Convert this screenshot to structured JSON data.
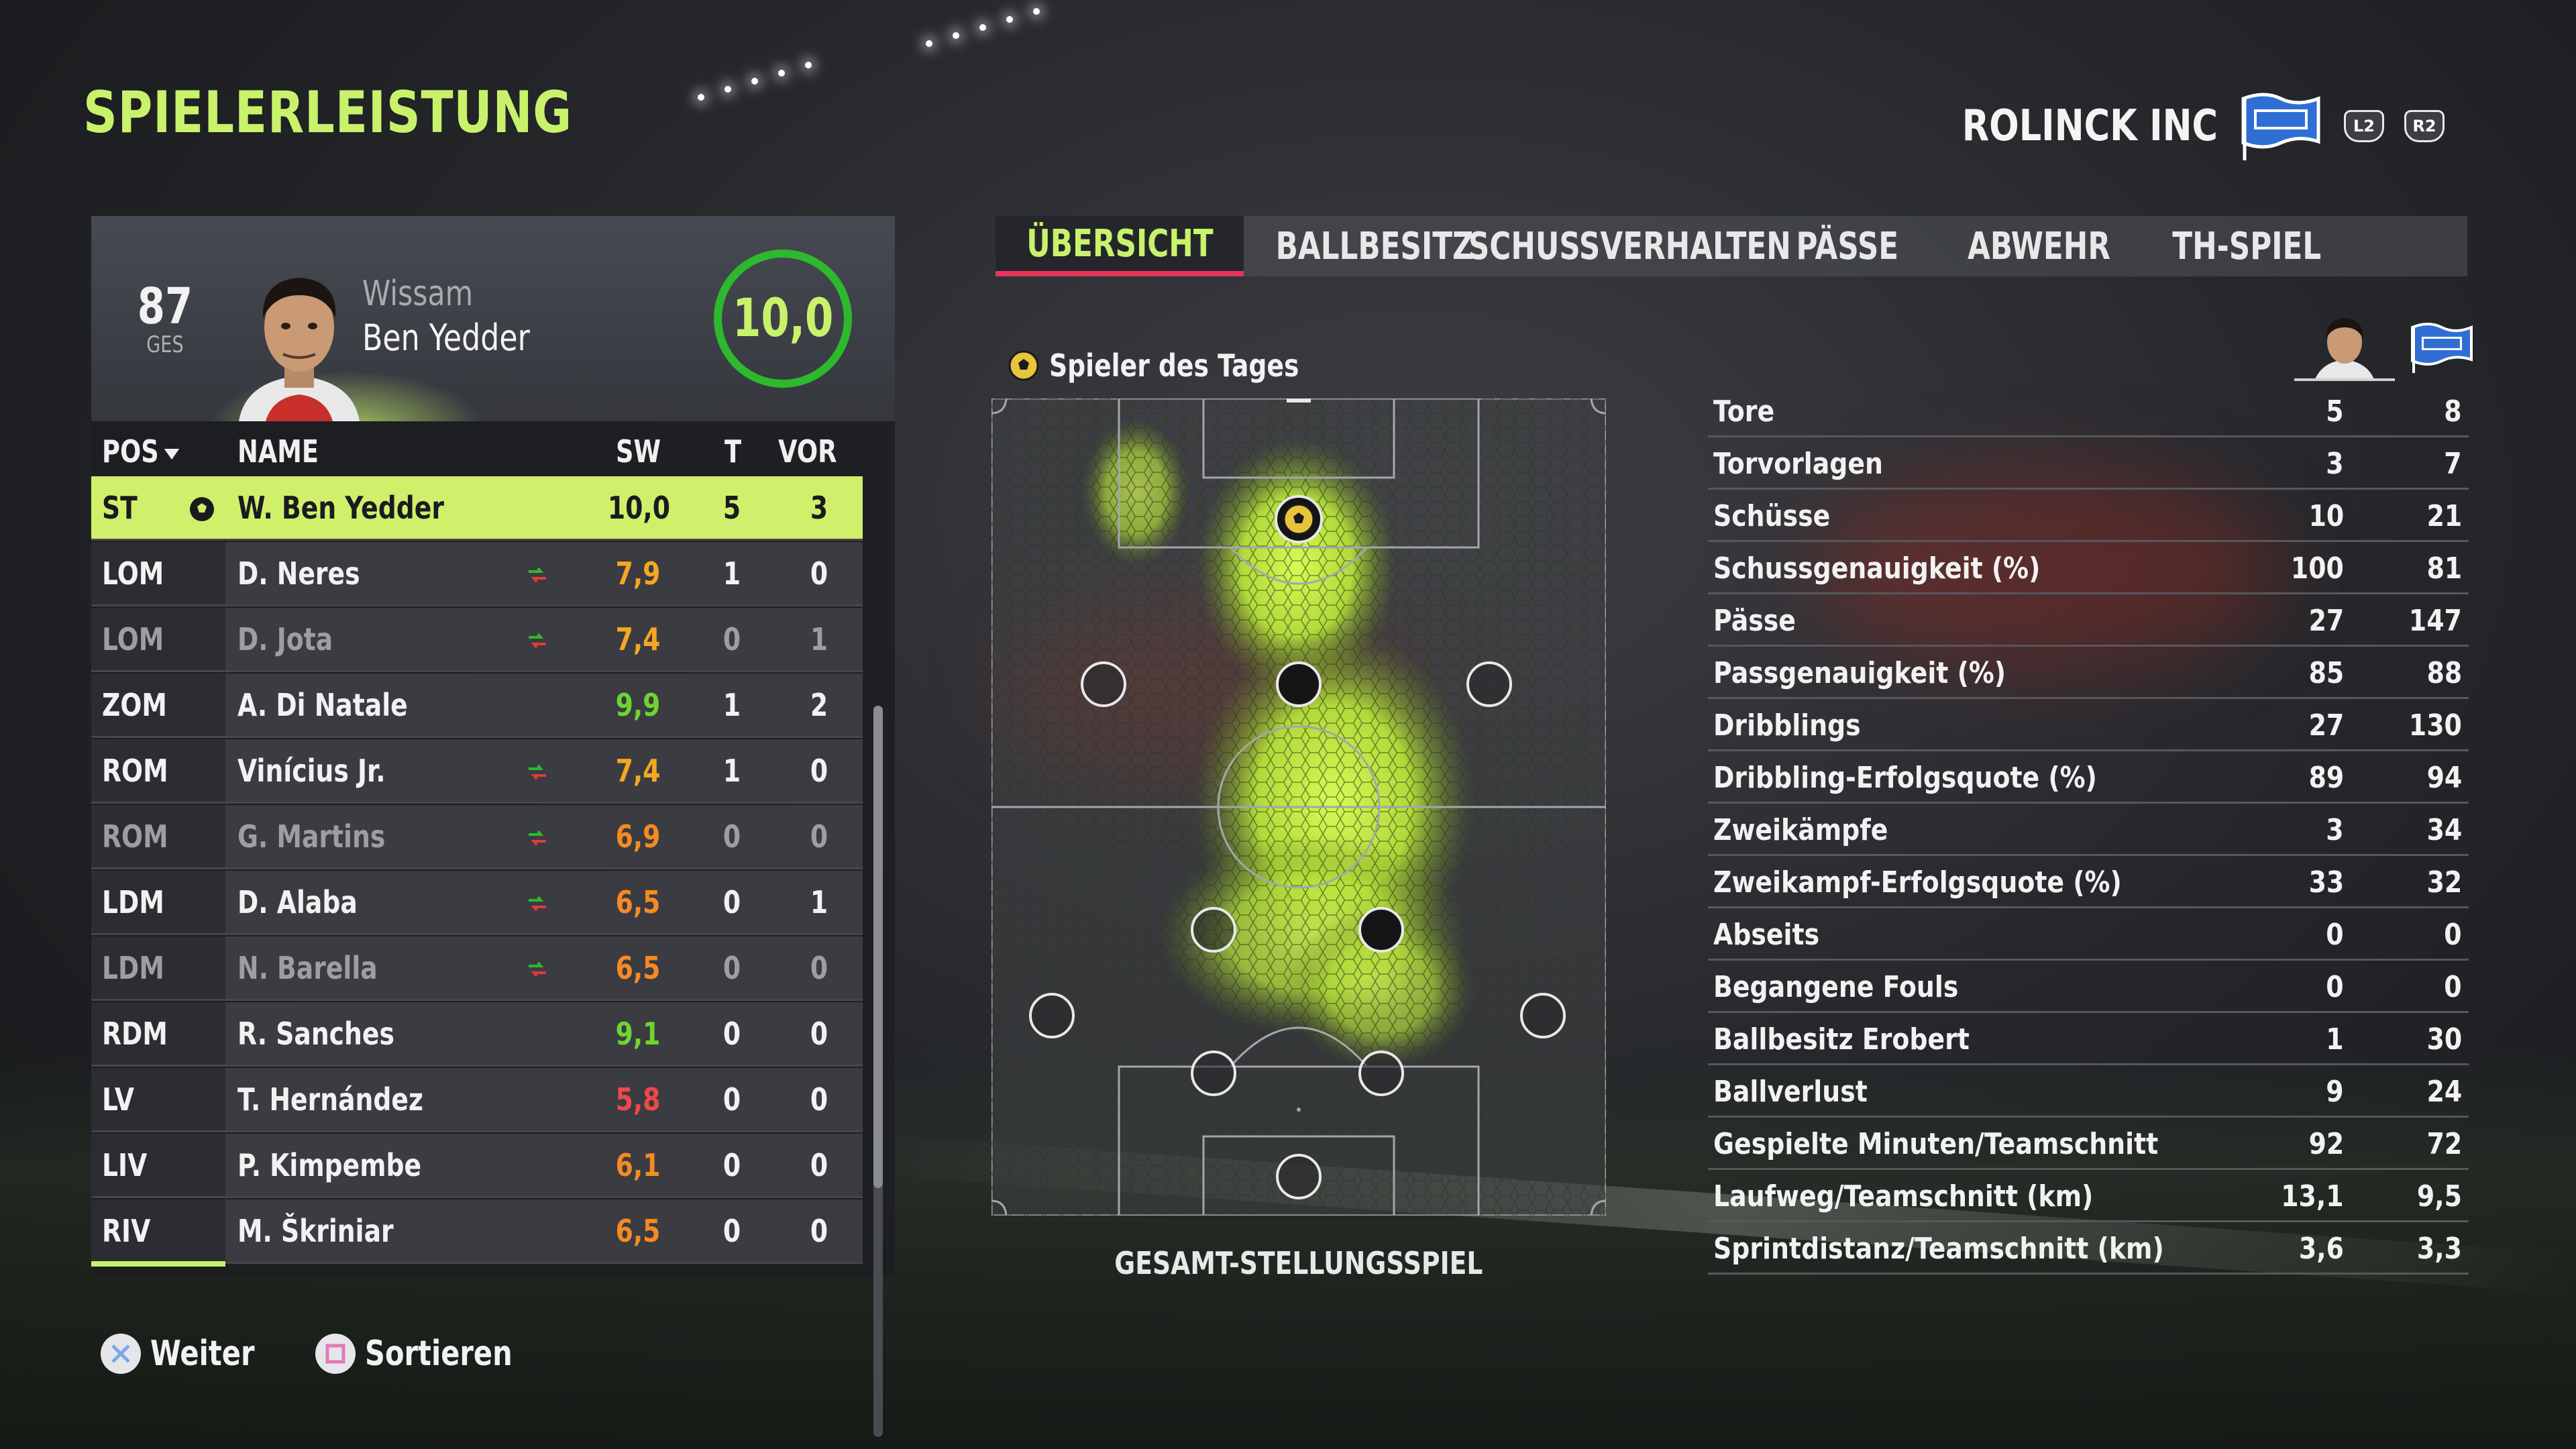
{
  "page": {
    "title": "SPIELERLEISTUNG"
  },
  "team": {
    "name": "ROLINCK INC",
    "prev_button": "L2",
    "next_button": "R2"
  },
  "player": {
    "overall": "87",
    "overall_label": "GES",
    "first_name": "Wissam",
    "last_name": "Ben Yedder",
    "match_rating": "10,0"
  },
  "list": {
    "headers": {
      "pos": "POS",
      "name": "NAME",
      "sw": "SW",
      "t": "T",
      "vor": "VOR"
    },
    "rows": [
      {
        "pos": "ST",
        "name": "W. Ben Yedder",
        "sw": "10,0",
        "t": "5",
        "vor": "3",
        "sw_color": "#1a1b1e",
        "active": true,
        "sub": false,
        "swap": false,
        "motm": true
      },
      {
        "pos": "LOM",
        "name": "D. Neres",
        "sw": "7,9",
        "t": "1",
        "vor": "0",
        "sw_color": "#f5a623",
        "active": false,
        "sub": false,
        "swap": true,
        "motm": false
      },
      {
        "pos": "LOM",
        "name": "D. Jota",
        "sw": "7,4",
        "t": "0",
        "vor": "1",
        "sw_color": "#f5a623",
        "active": false,
        "sub": true,
        "swap": true,
        "motm": false
      },
      {
        "pos": "ZOM",
        "name": "A. Di Natale",
        "sw": "9,9",
        "t": "1",
        "vor": "2",
        "sw_color": "#6fd430",
        "active": false,
        "sub": false,
        "swap": false,
        "motm": false
      },
      {
        "pos": "ROM",
        "name": "Vinícius Jr.",
        "sw": "7,4",
        "t": "1",
        "vor": "0",
        "sw_color": "#f5a623",
        "active": false,
        "sub": false,
        "swap": true,
        "motm": false
      },
      {
        "pos": "ROM",
        "name": "G. Martins",
        "sw": "6,9",
        "t": "0",
        "vor": "0",
        "sw_color": "#f58a23",
        "active": false,
        "sub": true,
        "swap": true,
        "motm": false
      },
      {
        "pos": "LDM",
        "name": "D. Alaba",
        "sw": "6,5",
        "t": "0",
        "vor": "1",
        "sw_color": "#f58a23",
        "active": false,
        "sub": false,
        "swap": true,
        "motm": false
      },
      {
        "pos": "LDM",
        "name": "N. Barella",
        "sw": "6,5",
        "t": "0",
        "vor": "0",
        "sw_color": "#f58a23",
        "active": false,
        "sub": true,
        "swap": true,
        "motm": false
      },
      {
        "pos": "RDM",
        "name": "R. Sanches",
        "sw": "9,1",
        "t": "0",
        "vor": "0",
        "sw_color": "#6fd430",
        "active": false,
        "sub": false,
        "swap": false,
        "motm": false
      },
      {
        "pos": "LV",
        "name": "T. Hernández",
        "sw": "5,8",
        "t": "0",
        "vor": "0",
        "sw_color": "#f04848",
        "active": false,
        "sub": false,
        "swap": false,
        "motm": false
      },
      {
        "pos": "LIV",
        "name": "P. Kimpembe",
        "sw": "6,1",
        "t": "0",
        "vor": "0",
        "sw_color": "#f58a23",
        "active": false,
        "sub": false,
        "swap": false,
        "motm": false
      },
      {
        "pos": "RIV",
        "name": "M. Škriniar",
        "sw": "6,5",
        "t": "0",
        "vor": "0",
        "sw_color": "#f58a23",
        "active": false,
        "sub": false,
        "swap": false,
        "motm": false
      }
    ],
    "scroll_fraction": 0.66
  },
  "tabs": [
    {
      "label": "ÜBERSICHT",
      "active": true
    },
    {
      "label": "BALLBESITZ",
      "active": false
    },
    {
      "label": "SCHUSSVERHALTEN",
      "active": false
    },
    {
      "label": "PÄSSE",
      "active": false
    },
    {
      "label": "ABWEHR",
      "active": false
    },
    {
      "label": "TH-SPIEL",
      "active": false
    }
  ],
  "pitch": {
    "motm_label": "Spieler des Tages",
    "caption": "GESAMT-STELLUNGSSPIEL"
  },
  "stats": [
    {
      "label": "Tore",
      "player": "5",
      "team": "8"
    },
    {
      "label": "Torvorlagen",
      "player": "3",
      "team": "7"
    },
    {
      "label": "Schüsse",
      "player": "10",
      "team": "21"
    },
    {
      "label": "Schussgenauigkeit (%)",
      "player": "100",
      "team": "81"
    },
    {
      "label": "Pässe",
      "player": "27",
      "team": "147"
    },
    {
      "label": "Passgenauigkeit (%)",
      "player": "85",
      "team": "88"
    },
    {
      "label": "Dribblings",
      "player": "27",
      "team": "130"
    },
    {
      "label": "Dribbling-Erfolgsquote (%)",
      "player": "89",
      "team": "94"
    },
    {
      "label": "Zweikämpfe",
      "player": "3",
      "team": "34"
    },
    {
      "label": "Zweikampf-Erfolgsquote (%)",
      "player": "33",
      "team": "32"
    },
    {
      "label": "Abseits",
      "player": "0",
      "team": "0"
    },
    {
      "label": "Begangene Fouls",
      "player": "0",
      "team": "0"
    },
    {
      "label": "Ballbesitz Erobert",
      "player": "1",
      "team": "30"
    },
    {
      "label": "Ballverlust",
      "player": "9",
      "team": "24"
    },
    {
      "label": "Gespielte Minuten/Teamschnitt",
      "player": "92",
      "team": "72"
    },
    {
      "label": "Laufweg/Teamschnitt (km)",
      "player": "13,1",
      "team": "9,5"
    },
    {
      "label": "Sprintdistanz/Teamschnitt (km)",
      "player": "3,6",
      "team": "3,3"
    }
  ],
  "footer": {
    "continue_label": "Weiter",
    "sort_label": "Sortieren"
  },
  "colors": {
    "accent": "#c8f26b",
    "tab_underline": "#e8335a",
    "rating_ring": "#2eb82e"
  }
}
